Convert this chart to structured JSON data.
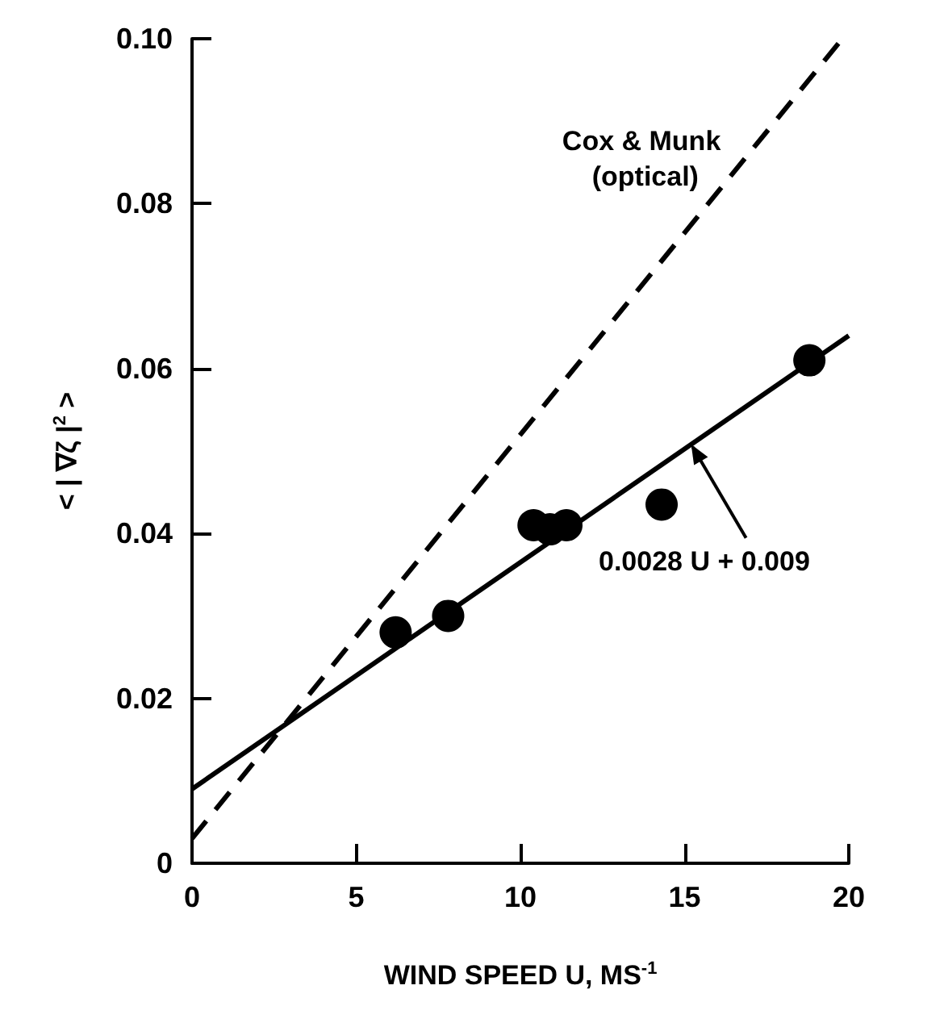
{
  "chart_data": {
    "type": "scatter",
    "xlabel": "WIND SPEED U, MS$^{-1}$",
    "ylabel": "< | ∇ζ |$^{2}$ >",
    "xlim": [
      0,
      20
    ],
    "xticks": [
      0,
      5,
      10,
      15,
      20
    ],
    "ylim": [
      0,
      0.1
    ],
    "yticks": [
      0,
      0.02,
      0.04,
      0.06,
      0.08,
      {
        "value": 0.1,
        "label": "0.10"
      }
    ],
    "grid": false,
    "legend": false,
    "series": [
      {
        "marker": "circle",
        "color": "#000000",
        "x": [
          6.2,
          7.8,
          10.4,
          10.9,
          11.4,
          14.3,
          18.8
        ],
        "values": [
          0.028,
          0.03,
          0.041,
          0.0405,
          0.041,
          0.0435,
          0.061
        ]
      },
      {
        "type": "line",
        "name": "0.0028 U + 0.009",
        "marker": "none",
        "line_style": "solid",
        "color": "#000000",
        "x": [
          0,
          20
        ],
        "values": [
          0.009,
          0.064
        ]
      },
      {
        "type": "line",
        "name": "Cox & Munk (optical)",
        "marker": "none",
        "line_style": "dashed",
        "color": "#000000",
        "x": [
          0,
          19.7
        ],
        "values": [
          0.003,
          0.0995
        ]
      }
    ]
  }
}
